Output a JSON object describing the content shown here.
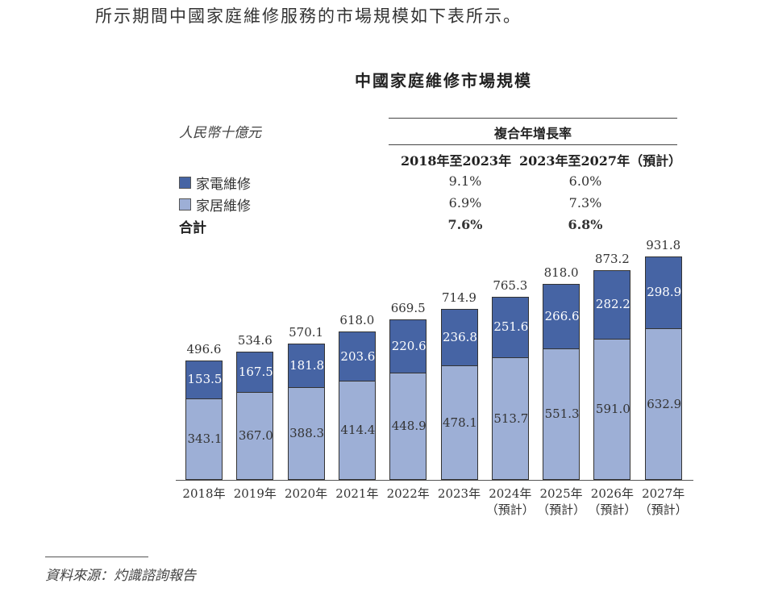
{
  "intro_text": "所示期間中國家庭維修服務的市場規模如下表所示。",
  "chart_title": "中國家庭維修市場規模",
  "unit_label": "人民幣十億元",
  "cagr_table": {
    "header": "複合年增長率",
    "periods": [
      "2018年至2023年",
      "2023年至2027年（預計）"
    ],
    "rows": [
      {
        "label": "家電維修",
        "color": "#4664a4",
        "values": [
          "9.1%",
          "6.0%"
        ]
      },
      {
        "label": "家居維修",
        "color": "#9dafd6",
        "values": [
          "6.9%",
          "7.3%"
        ]
      },
      {
        "label": "合計",
        "values": [
          "7.6%",
          "6.8%"
        ]
      }
    ]
  },
  "chart_data": {
    "type": "bar",
    "stacked": true,
    "title": "中國家庭維修市場規模",
    "ylabel": "人民幣十億元",
    "xlabel": "",
    "categories": [
      "2018年",
      "2019年",
      "2020年",
      "2021年",
      "2022年",
      "2023年",
      "2024年（預計）",
      "2025年（預計）",
      "2026年（預計）",
      "2027年（預計）"
    ],
    "series": [
      {
        "name": "家居維修",
        "color": "#9dafd6",
        "values": [
          343.1,
          367.0,
          388.3,
          414.4,
          448.9,
          478.1,
          513.7,
          551.3,
          591.0,
          632.9
        ]
      },
      {
        "name": "家電維修",
        "color": "#4664a4",
        "values": [
          153.5,
          167.5,
          181.8,
          203.6,
          220.6,
          236.8,
          251.6,
          266.6,
          282.2,
          298.9
        ]
      }
    ],
    "totals": [
      496.6,
      534.6,
      570.1,
      618.0,
      669.5,
      714.9,
      765.3,
      818.0,
      873.2,
      931.8
    ],
    "grid": false,
    "legend_position": "top-left"
  },
  "bars": [
    {
      "year": "2018年",
      "note": "",
      "bottom": "343.1",
      "top": "153.5",
      "total": "496.6"
    },
    {
      "year": "2019年",
      "note": "",
      "bottom": "367.0",
      "top": "167.5",
      "total": "534.6"
    },
    {
      "year": "2020年",
      "note": "",
      "bottom": "388.3",
      "top": "181.8",
      "total": "570.1"
    },
    {
      "year": "2021年",
      "note": "",
      "bottom": "414.4",
      "top": "203.6",
      "total": "618.0"
    },
    {
      "year": "2022年",
      "note": "",
      "bottom": "448.9",
      "top": "220.6",
      "total": "669.5"
    },
    {
      "year": "2023年",
      "note": "",
      "bottom": "478.1",
      "top": "236.8",
      "total": "714.9"
    },
    {
      "year": "2024年",
      "note": "（預計）",
      "bottom": "513.7",
      "top": "251.6",
      "total": "765.3"
    },
    {
      "year": "2025年",
      "note": "（預計）",
      "bottom": "551.3",
      "top": "266.6",
      "total": "818.0"
    },
    {
      "year": "2026年",
      "note": "（預計）",
      "bottom": "591.0",
      "top": "282.2",
      "total": "873.2"
    },
    {
      "year": "2027年",
      "note": "（預計）",
      "bottom": "632.9",
      "top": "298.9",
      "total": "931.8"
    }
  ],
  "source": "資料來源：灼識諮詢報告"
}
